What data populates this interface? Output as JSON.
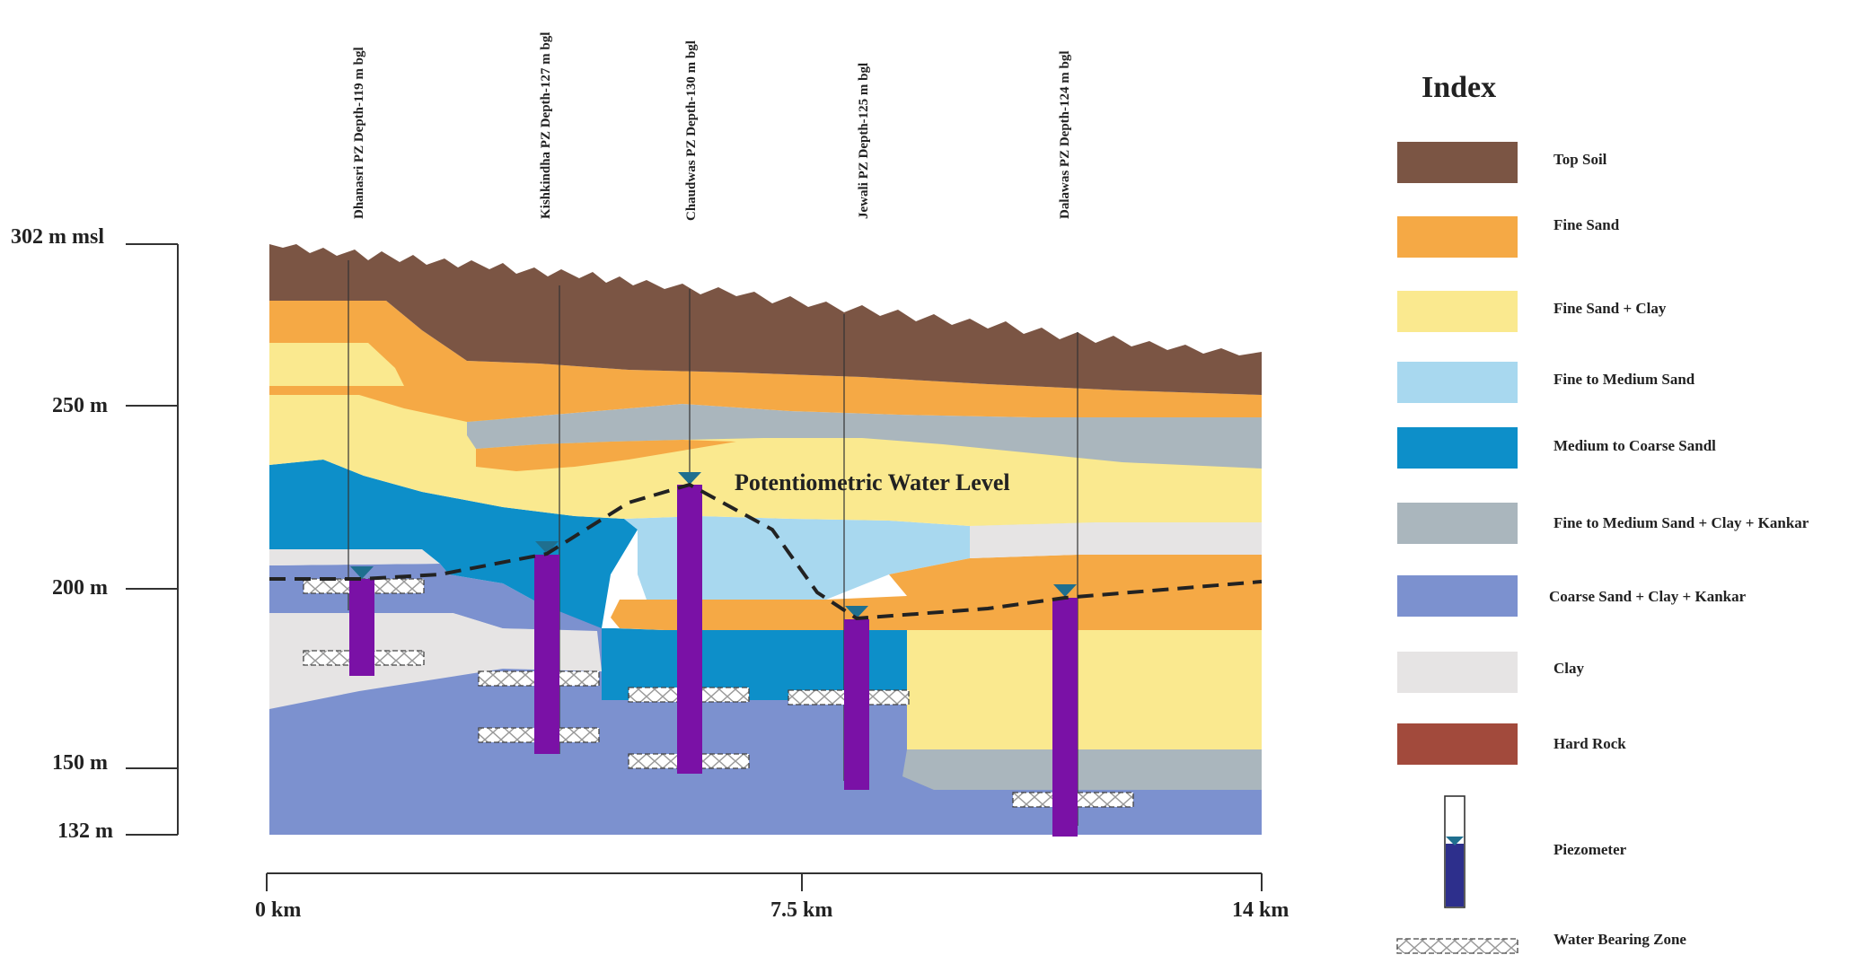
{
  "colors": {
    "top_soil": "#7b5544",
    "fine_sand": "#f5a945",
    "fine_sand_clay": "#fae98f",
    "fine_to_medium_sand": "#a8d8ef",
    "medium_to_coarse_sand": "#0d8fc9",
    "fine_medium_sand_clay_kankar": "#aab6bd",
    "coarse_sand_clay_kankar": "#7c91cf",
    "clay": "#e6e4e4",
    "hard_rock": "#a24a3c",
    "piezometer": "#7a11a6",
    "piezometer_legend": "#2d2f8c",
    "water_marker": "#1f6f8f"
  },
  "vertical_axis": {
    "ticks": [
      {
        "label": "302 m msl"
      },
      {
        "label": "250 m"
      },
      {
        "label": "200 m"
      },
      {
        "label": "150 m"
      },
      {
        "label": "132 m"
      }
    ]
  },
  "horizontal_axis": {
    "ticks": [
      {
        "label": "0 km"
      },
      {
        "label": "7.5 km"
      },
      {
        "label": "14 km"
      }
    ]
  },
  "wells": [
    {
      "label": "Dhanasri PZ Depth-119 m bgl"
    },
    {
      "label": "Kishkindha PZ Depth-127 m bgl"
    },
    {
      "label": "Chaudwas PZ Depth-130 m bgl"
    },
    {
      "label": "Jewali PZ Depth-125 m bgl"
    },
    {
      "label": "Dalawas PZ Depth-124 m bgl"
    }
  ],
  "potentiometric_label": "Potentiometric Water Level",
  "legend": {
    "title": "Index",
    "items": [
      {
        "label": "Top Soil",
        "color_key": "top_soil"
      },
      {
        "label": "Fine Sand",
        "color_key": "fine_sand"
      },
      {
        "label": "Fine Sand + Clay",
        "color_key": "fine_sand_clay"
      },
      {
        "label": "Fine to Medium Sand",
        "color_key": "fine_to_medium_sand"
      },
      {
        "label": "Medium to Coarse Sandl",
        "color_key": "medium_to_coarse_sand"
      },
      {
        "label": "Fine to Medium Sand + Clay + Kankar",
        "color_key": "fine_medium_sand_clay_kankar"
      },
      {
        "label": "Coarse Sand + Clay + Kankar",
        "color_key": "coarse_sand_clay_kankar"
      },
      {
        "label": "Clay",
        "color_key": "clay"
      },
      {
        "label": "Hard Rock",
        "color_key": "hard_rock"
      },
      {
        "label": "Piezometer",
        "symbol": "piezometer"
      },
      {
        "label": "Water Bearing Zone",
        "symbol": "water-bearing-zone"
      }
    ]
  }
}
